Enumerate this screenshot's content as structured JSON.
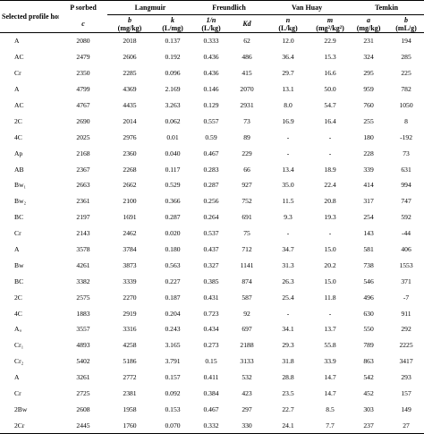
{
  "header": {
    "selected_profile": "Selected profile horizons",
    "p_sorbed": "P sorbed",
    "groups": [
      "Langmuir",
      "Freundlich",
      "Van Huay",
      "Temkin"
    ],
    "sub": [
      "c",
      "b",
      "k",
      "1/n",
      "Kd",
      "n",
      "m",
      "a",
      "b"
    ],
    "units": [
      "",
      "(mg/kg)",
      "(L/mg)",
      "(L/kg)",
      "",
      "(L/kg)",
      "(mg²/kg²)",
      "(mg/kg)",
      "(mL/g)"
    ]
  },
  "rows": [
    [
      "A",
      "2080",
      "2018",
      "0.137",
      "0.333",
      "62",
      "12.0",
      "22.9",
      "231",
      "194"
    ],
    [
      "AC",
      "2479",
      "2606",
      "0.192",
      "0.436",
      "486",
      "36.4",
      "15.3",
      "324",
      "285"
    ],
    [
      "Cr",
      "2350",
      "2285",
      "0.096",
      "0.436",
      "415",
      "29.7",
      "16.6",
      "295",
      "225"
    ],
    [
      "A",
      "4799",
      "4369",
      "2.169",
      "0.146",
      "2070",
      "13.1",
      "50.0",
      "959",
      "782"
    ],
    [
      "AC",
      "4767",
      "4435",
      "3.263",
      "0.129",
      "2931",
      "8.0",
      "54.7",
      "760",
      "1050"
    ],
    [
      "2C",
      "2690",
      "2014",
      "0.062",
      "0.557",
      "73",
      "16.9",
      "16.4",
      "255",
      "8"
    ],
    [
      "4C",
      "2025",
      "2976",
      "0.01",
      "0.59",
      "89",
      "-",
      "-",
      "180",
      "-192"
    ],
    [
      "Ap",
      "2168",
      "2360",
      "0.040",
      "0.467",
      "229",
      "-",
      "-",
      "228",
      "73"
    ],
    [
      "AB",
      "2367",
      "2268",
      "0.117",
      "0.283",
      "66",
      "13.4",
      "18.9",
      "339",
      "631"
    ],
    [
      "Bw₁",
      "2663",
      "2662",
      "0.529",
      "0.287",
      "927",
      "35.0",
      "22.4",
      "414",
      "994"
    ],
    [
      "Bw₂",
      "2361",
      "2100",
      "0.366",
      "0.256",
      "752",
      "11.5",
      "20.8",
      "317",
      "747"
    ],
    [
      "BC",
      "2197",
      "1691",
      "0.287",
      "0.264",
      "691",
      "9.3",
      "19.3",
      "254",
      "592"
    ],
    [
      "Cr",
      "2143",
      "2462",
      "0.020",
      "0.537",
      "75",
      "-",
      "-",
      "143",
      "-44"
    ],
    [
      "A",
      "3578",
      "3784",
      "0.180",
      "0.437",
      "712",
      "34.7",
      "15.0",
      "581",
      "406"
    ],
    [
      "Bw",
      "4261",
      "3873",
      "0.563",
      "0.327",
      "1141",
      "31.3",
      "20.2",
      "738",
      "1553"
    ],
    [
      "BC",
      "3382",
      "3339",
      "0.227",
      "0.385",
      "874",
      "26.3",
      "15.0",
      "546",
      "371"
    ],
    [
      "2C",
      "2575",
      "2270",
      "0.187",
      "0.431",
      "587",
      "25.4",
      "11.8",
      "496",
      "-7"
    ],
    [
      "4C",
      "1883",
      "2919",
      "0.204",
      "0.723",
      "92",
      "-",
      "-",
      "630",
      "911"
    ],
    [
      "Aᵤ",
      "3557",
      "3316",
      "0.243",
      "0.434",
      "697",
      "34.1",
      "13.7",
      "550",
      "292"
    ],
    [
      "Cr₁",
      "4893",
      "4258",
      "3.165",
      "0.273",
      "2188",
      "29.3",
      "55.8",
      "789",
      "2225"
    ],
    [
      "Cr₂",
      "5402",
      "5186",
      "3.791",
      "0.15",
      "3133",
      "31.8",
      "33.9",
      "863",
      "3417"
    ],
    [
      "A",
      "3261",
      "2772",
      "0.157",
      "0.411",
      "532",
      "28.8",
      "14.7",
      "542",
      "293"
    ],
    [
      "Cr",
      "2725",
      "2381",
      "0.092",
      "0.384",
      "423",
      "23.5",
      "14.7",
      "452",
      "157"
    ],
    [
      "2Bw",
      "2608",
      "1958",
      "0.153",
      "0.467",
      "297",
      "22.7",
      "8.5",
      "303",
      "149"
    ],
    [
      "2Cr",
      "2445",
      "1760",
      "0.070",
      "0.332",
      "330",
      "24.1",
      "7.7",
      "237",
      "27"
    ]
  ]
}
